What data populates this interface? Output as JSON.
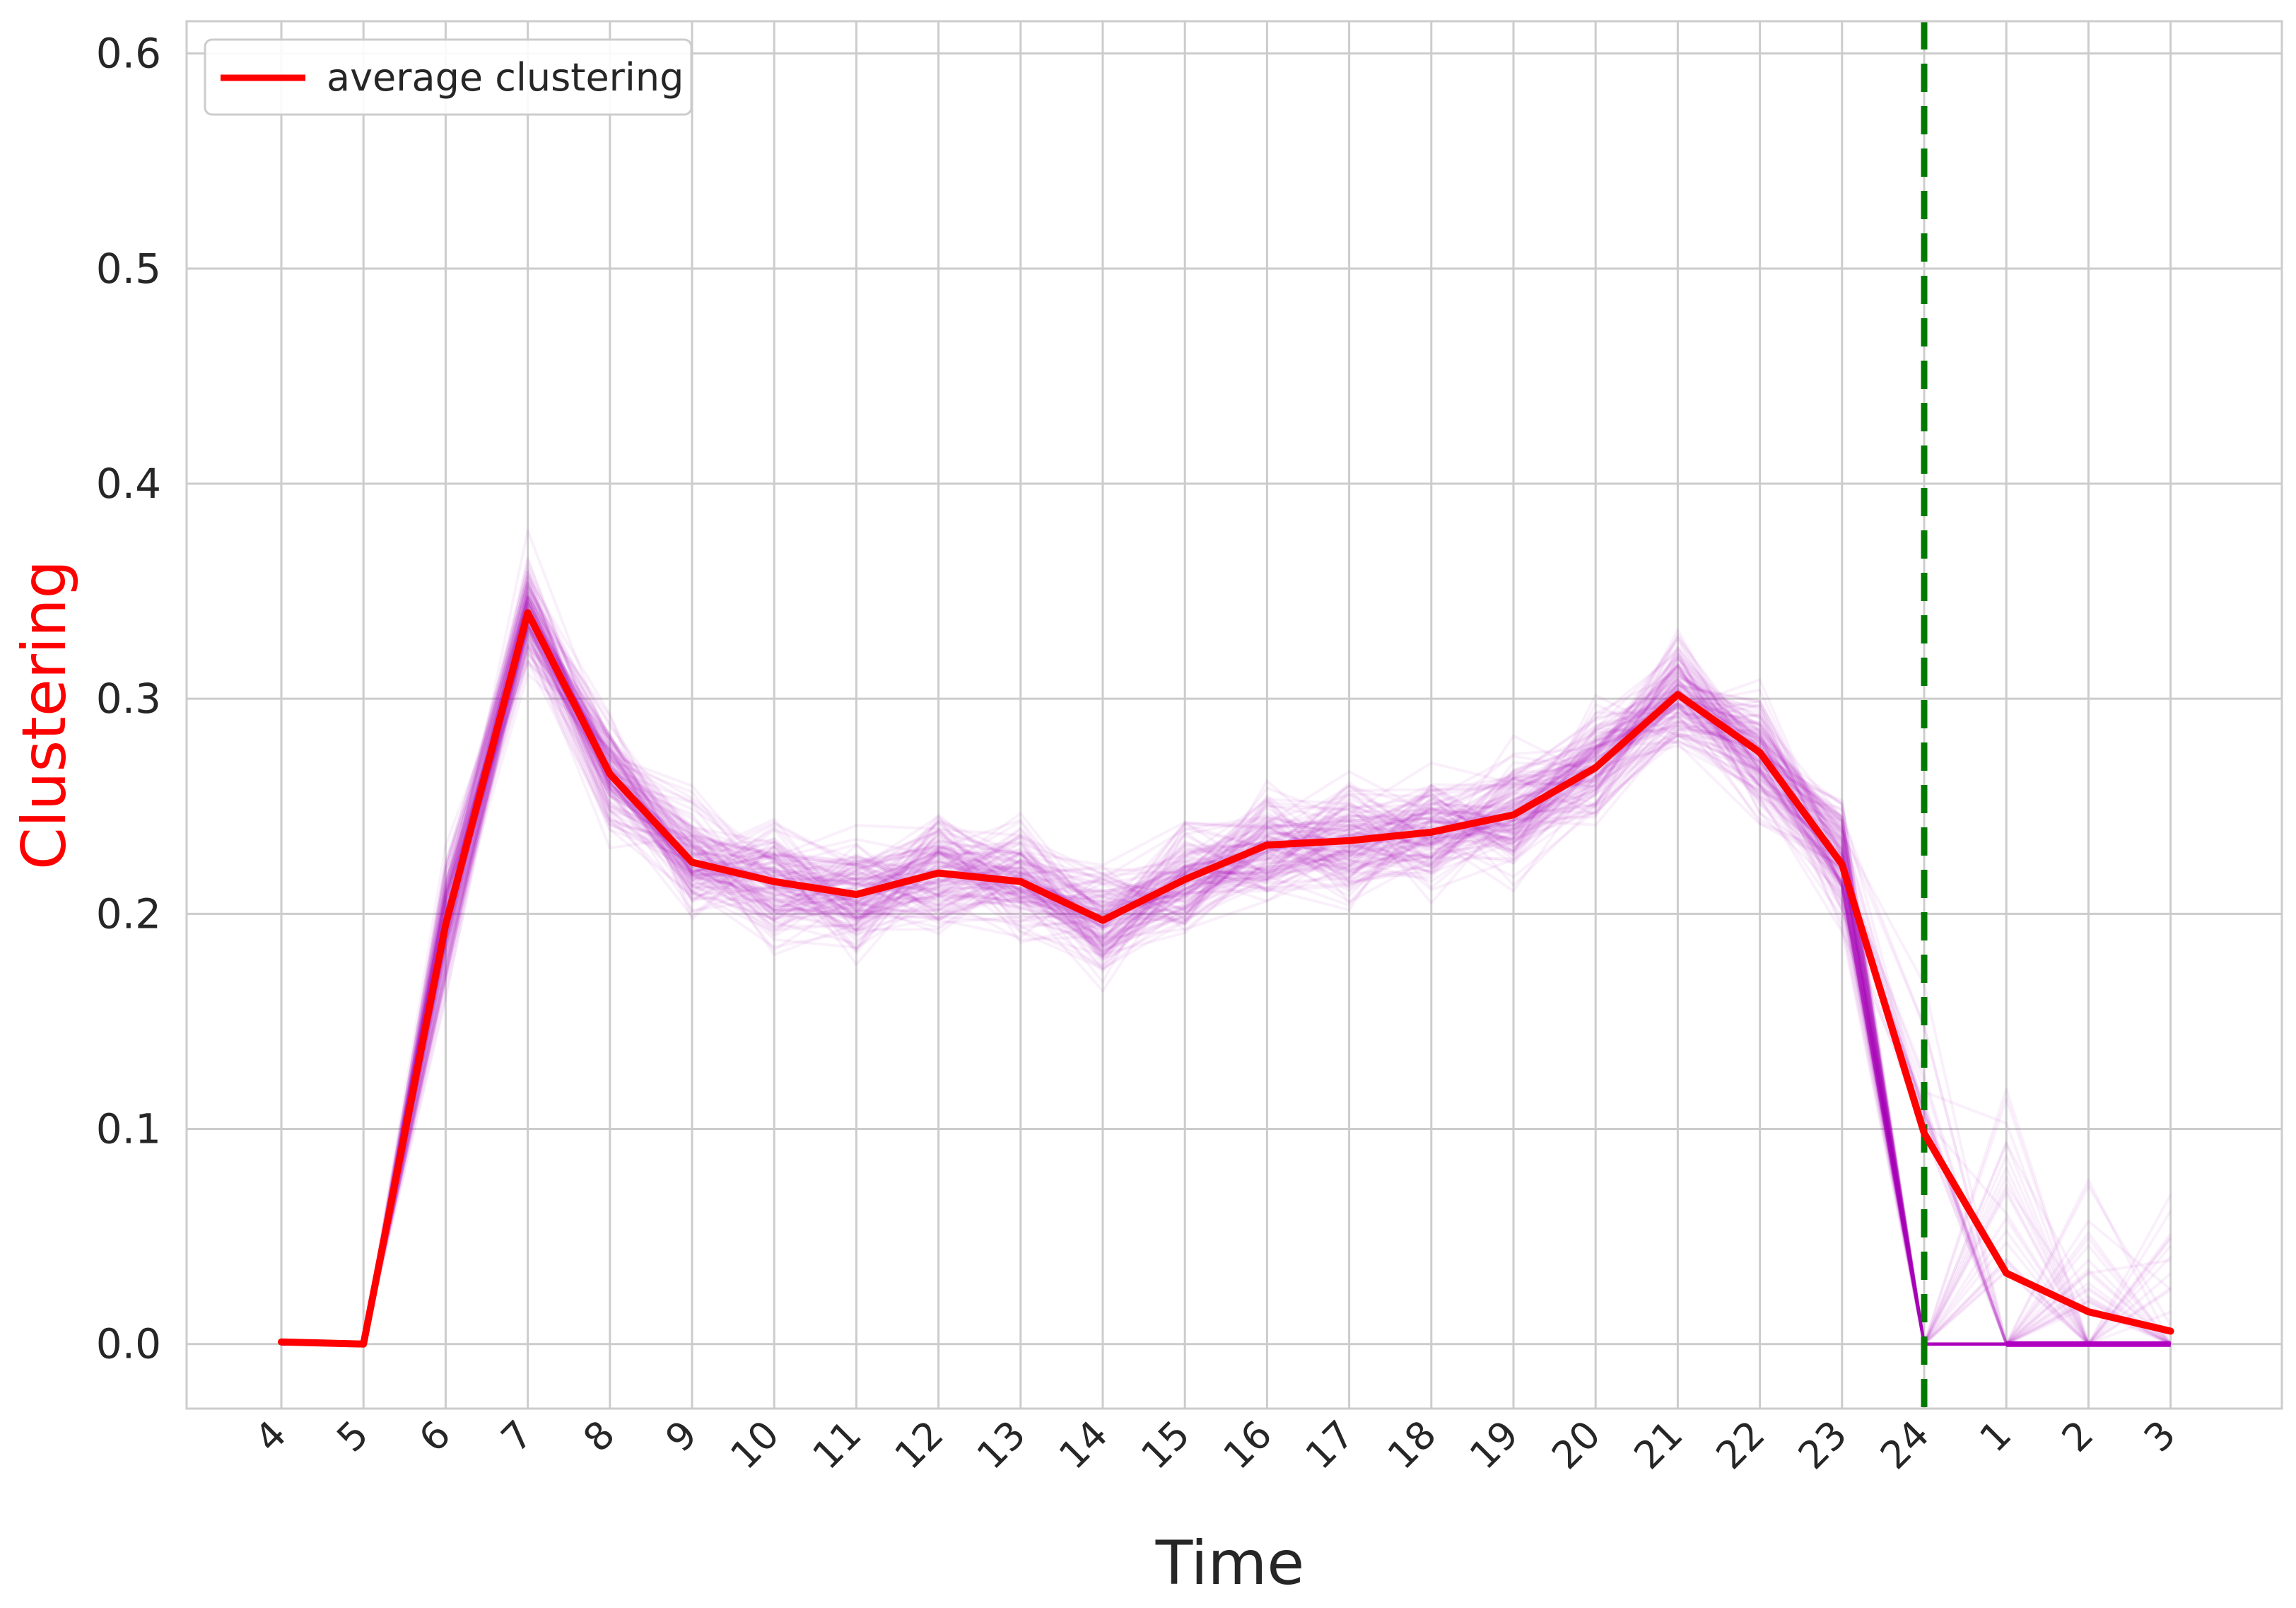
{
  "chart_data": {
    "type": "line",
    "title": "",
    "xlabel": "Time",
    "ylabel": "Clustering",
    "categories": [
      "4",
      "5",
      "6",
      "7",
      "8",
      "9",
      "10",
      "11",
      "12",
      "13",
      "14",
      "15",
      "16",
      "17",
      "18",
      "19",
      "20",
      "21",
      "22",
      "23",
      "24",
      "1",
      "2",
      "3"
    ],
    "ylim": [
      -0.03,
      0.615
    ],
    "yticks": [
      0.0,
      0.1,
      0.2,
      0.3,
      0.4,
      0.5,
      0.6
    ],
    "ytick_labels": [
      "0.0",
      "0.1",
      "0.2",
      "0.3",
      "0.4",
      "0.5",
      "0.6"
    ],
    "grid": true,
    "legend": {
      "position": "top-left",
      "entries": [
        "average clustering"
      ]
    },
    "series": [
      {
        "name": "average clustering",
        "color": "#ff0000",
        "values": [
          0.001,
          0.0,
          0.195,
          0.34,
          0.265,
          0.224,
          0.215,
          0.209,
          0.219,
          0.215,
          0.197,
          0.216,
          0.232,
          0.234,
          0.238,
          0.246,
          0.268,
          0.302,
          0.275,
          0.223,
          0.098,
          0.033,
          0.015,
          0.006
        ]
      }
    ],
    "ensemble_color": "#b000c0",
    "ensemble_zero_tail_categories": [
      "24",
      "1",
      "2",
      "3"
    ],
    "vline": {
      "category": "24",
      "color": "#007a00",
      "style": "dashed"
    }
  }
}
